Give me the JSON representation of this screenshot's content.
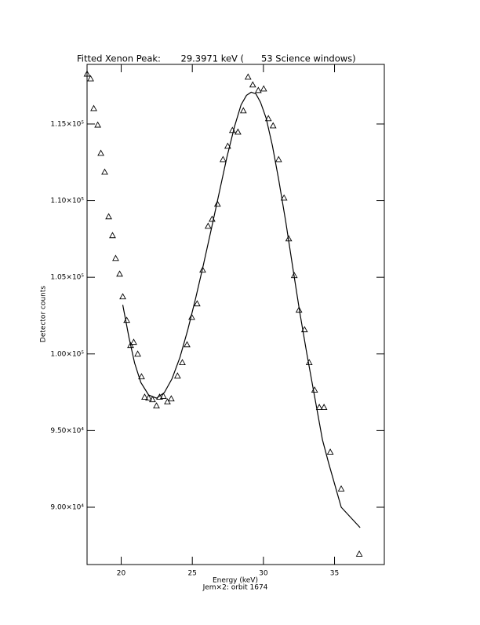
{
  "chart_data": {
    "type": "scatter",
    "title": "Fitted Xenon Peak:       29.3971 keV (      53 Science windows)",
    "x_label": "Energy (keV)",
    "subtitle": "Jem×2: orbit 1674",
    "y_label": "Detector counts",
    "xlim": [
      17.6,
      38.5
    ],
    "ylim": [
      86260,
      118890
    ],
    "xticks": [
      20,
      25,
      30,
      35
    ],
    "yticks": [
      {
        "value": 90000,
        "label": "9.00×10⁴"
      },
      {
        "value": 95000,
        "label": "9.50×10⁴"
      },
      {
        "value": 100000,
        "label": "1.00×10⁵"
      },
      {
        "value": 105000,
        "label": "1.05×10⁵"
      },
      {
        "value": 110000,
        "label": "1.10×10⁵"
      },
      {
        "value": 115000,
        "label": "1.15×10⁵"
      }
    ],
    "series": [
      {
        "type": "scatter",
        "color": "#000000",
        "x": [
          17.6,
          17.85,
          18.07,
          18.35,
          18.57,
          18.84,
          19.12,
          19.39,
          19.61,
          19.89,
          20.11,
          20.39,
          20.66,
          20.88,
          21.16,
          21.43,
          21.65,
          21.93,
          22.2,
          22.48,
          22.7,
          22.97,
          23.25,
          23.52,
          23.96,
          24.3,
          24.63,
          24.96,
          25.34,
          25.73,
          26.11,
          26.39,
          26.77,
          27.16,
          27.49,
          27.82,
          28.21,
          28.59,
          28.92,
          29.25,
          29.64,
          30.02,
          30.35,
          30.68,
          31.07,
          31.45,
          31.78,
          32.17,
          32.5,
          32.89,
          33.22,
          33.6,
          33.93,
          34.26,
          34.7,
          35.47,
          36.74
        ],
        "values": [
          118250,
          117940,
          116000,
          114920,
          113080,
          111850,
          108940,
          107710,
          106220,
          105200,
          103720,
          102180,
          100540,
          100750,
          99980,
          98500,
          97170,
          97110,
          97010,
          96600,
          97170,
          97220,
          96860,
          97060,
          98550,
          99420,
          100590,
          102380,
          103260,
          105460,
          108320,
          108780,
          109760,
          112670,
          113540,
          114570,
          114460,
          115850,
          118050,
          117540,
          117180,
          117280,
          115340,
          114870,
          112670,
          110160,
          107500,
          105100,
          102850,
          101570,
          99420,
          97630,
          96500,
          96500,
          93580,
          91180,
          86930
        ]
      },
      {
        "type": "line",
        "color": "#000000",
        "x": [
          20.11,
          20.55,
          20.94,
          21.38,
          21.93,
          22.48,
          23.03,
          23.58,
          24.13,
          24.68,
          25.23,
          25.78,
          26.33,
          26.88,
          27.43,
          27.98,
          28.43,
          28.81,
          29.14,
          29.47,
          29.8,
          30.19,
          30.63,
          31.07,
          31.57,
          32.06,
          32.56,
          33.05,
          33.6,
          34.15,
          34.59,
          35.47,
          36.8
        ],
        "values": [
          103204,
          101055,
          99417,
          98138,
          97319,
          97114,
          97472,
          98394,
          99775,
          101567,
          103614,
          105815,
          108118,
          110472,
          112826,
          114873,
          116255,
          116870,
          117074,
          116972,
          116409,
          115385,
          113594,
          111393,
          108630,
          105661,
          102693,
          100031,
          97216,
          94401,
          92866,
          90000,
          88669
        ]
      }
    ]
  }
}
